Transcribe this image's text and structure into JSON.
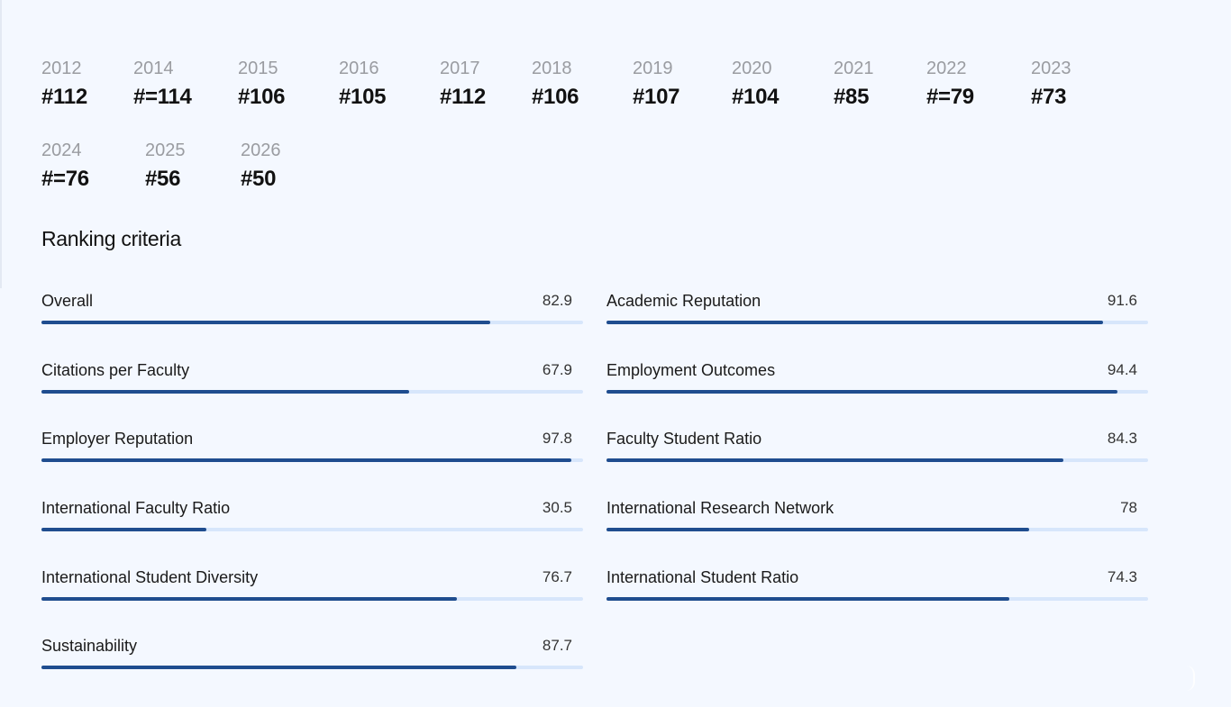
{
  "rankings": [
    {
      "year": "2012",
      "rank": "#112"
    },
    {
      "year": "2014",
      "rank": "#=114"
    },
    {
      "year": "2015",
      "rank": "#106"
    },
    {
      "year": "2016",
      "rank": "#105"
    },
    {
      "year": "2017",
      "rank": "#112"
    },
    {
      "year": "2018",
      "rank": "#106"
    },
    {
      "year": "2019",
      "rank": "#107"
    },
    {
      "year": "2020",
      "rank": "#104"
    },
    {
      "year": "2021",
      "rank": "#85"
    },
    {
      "year": "2022",
      "rank": "#=79"
    },
    {
      "year": "2023",
      "rank": "#73"
    },
    {
      "year": "2024",
      "rank": "#=76"
    },
    {
      "year": "2025",
      "rank": "#56"
    },
    {
      "year": "2026",
      "rank": "#50"
    }
  ],
  "criteria_section": {
    "title": "Ranking criteria",
    "max_score": 100,
    "items": [
      {
        "label": "Overall",
        "value": "82.9",
        "score": 82.9
      },
      {
        "label": "Academic Reputation",
        "value": "91.6",
        "score": 91.6
      },
      {
        "label": "Citations per Faculty",
        "value": "67.9",
        "score": 67.9
      },
      {
        "label": "Employment Outcomes",
        "value": "94.4",
        "score": 94.4
      },
      {
        "label": "Employer Reputation",
        "value": "97.8",
        "score": 97.8
      },
      {
        "label": "Faculty Student Ratio",
        "value": "84.3",
        "score": 84.3
      },
      {
        "label": "International Faculty Ratio",
        "value": "30.5",
        "score": 30.5
      },
      {
        "label": "International Research Network",
        "value": "78",
        "score": 78
      },
      {
        "label": "International Student Diversity",
        "value": "76.7",
        "score": 76.7
      },
      {
        "label": "International Student Ratio",
        "value": "74.3",
        "score": 74.3
      },
      {
        "label": "Sustainability",
        "value": "87.7",
        "score": 87.7
      }
    ]
  },
  "colors": {
    "background": "#f4f8ff",
    "bar_fill": "#1f4d8f",
    "bar_track": "#d7e6fb",
    "year_text": "#9a9ca1"
  }
}
